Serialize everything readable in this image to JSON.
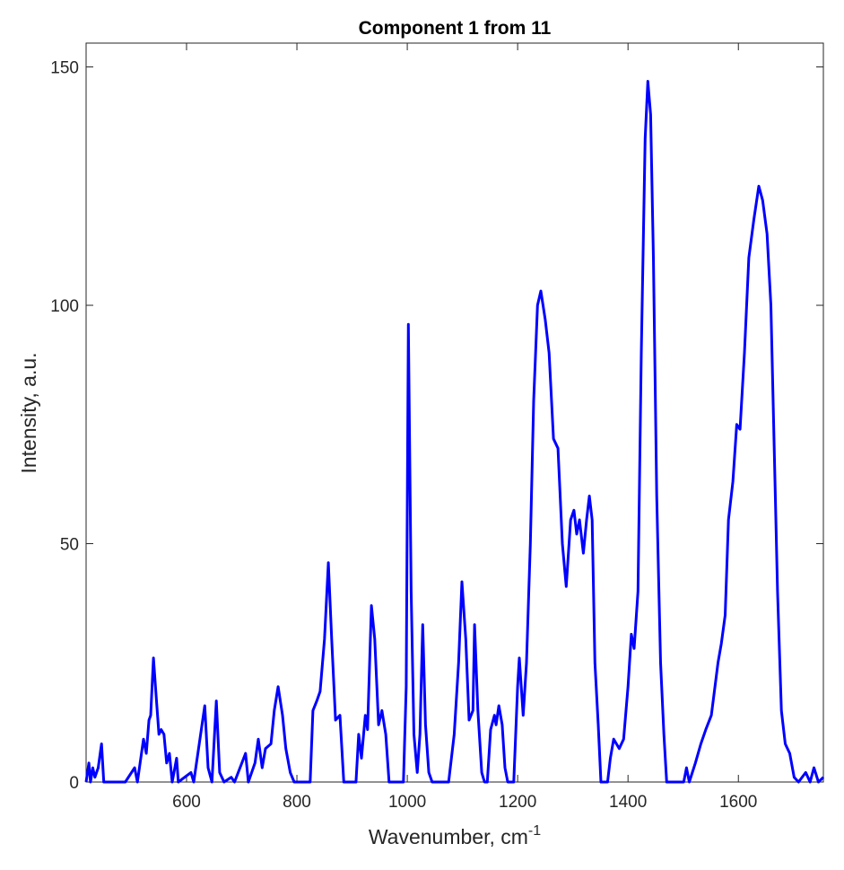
{
  "chart_data": {
    "type": "line",
    "title": "Component 1 from 11",
    "x_label": "Wavenumber, cm",
    "x_label_superscript": "-1",
    "y_label": "Intensity, a.u.",
    "xlim": [
      418,
      1754
    ],
    "ylim": [
      0,
      155
    ],
    "xticks": [
      600,
      800,
      1000,
      1200,
      1400,
      1600
    ],
    "yticks": [
      0,
      50,
      100,
      150
    ],
    "series": [
      {
        "color": "#0000ff",
        "x": [
          418,
          423,
          426,
          430,
          434,
          440,
          446,
          450,
          489,
          506,
          511,
          522,
          527,
          532,
          535,
          540,
          545,
          550,
          554,
          559,
          564,
          569,
          574,
          582,
          585,
          608,
          613,
          633,
          639,
          646,
          654,
          660,
          668,
          681,
          687,
          707,
          712,
          724,
          730,
          737,
          743,
          753,
          759,
          766,
          774,
          780,
          788,
          795,
          824,
          829,
          836,
          842,
          850,
          857,
          863,
          870,
          878,
          885,
          907,
          912,
          917,
          924,
          928,
          935,
          941,
          948,
          954,
          961,
          967,
          993,
          998,
          1002,
          1007,
          1012,
          1018,
          1023,
          1028,
          1033,
          1039,
          1045,
          1075,
          1085,
          1093,
          1099,
          1106,
          1112,
          1119,
          1122,
          1128,
          1135,
          1140,
          1145,
          1151,
          1158,
          1161,
          1166,
          1172,
          1177,
          1182,
          1193,
          1200,
          1203,
          1210,
          1216,
          1223,
          1229,
          1236,
          1242,
          1250,
          1257,
          1265,
          1273,
          1281,
          1288,
          1296,
          1302,
          1307,
          1312,
          1319,
          1325,
          1330,
          1335,
          1340,
          1346,
          1351,
          1363,
          1368,
          1374,
          1384,
          1392,
          1400,
          1406,
          1411,
          1418,
          1424,
          1431,
          1436,
          1441,
          1446,
          1452,
          1459,
          1465,
          1470,
          1501,
          1506,
          1511,
          1522,
          1532,
          1541,
          1551,
          1563,
          1569,
          1576,
          1582,
          1590,
          1597,
          1603,
          1611,
          1619,
          1628,
          1637,
          1644,
          1652,
          1659,
          1665,
          1671,
          1678,
          1685,
          1693,
          1701,
          1709,
          1722,
          1730,
          1737,
          1745,
          1754
        ],
        "values": [
          0,
          4,
          0,
          3,
          1,
          3,
          8,
          0,
          0,
          3,
          0,
          9,
          6,
          13,
          14,
          26,
          18,
          10,
          11,
          10,
          4,
          6,
          0,
          5,
          0,
          2,
          0,
          16,
          3,
          0,
          17,
          2,
          0,
          1,
          0,
          6,
          0,
          4,
          9,
          3,
          7,
          8,
          15,
          20,
          14,
          7,
          2,
          0,
          0,
          15,
          17,
          19,
          30,
          46,
          30,
          13,
          14,
          0,
          0,
          10,
          5,
          14,
          11,
          37,
          30,
          12,
          15,
          10,
          0,
          0,
          20,
          96,
          40,
          10,
          2,
          10,
          33,
          12,
          2,
          0,
          0,
          10,
          25,
          42,
          30,
          13,
          15,
          33,
          15,
          2,
          0,
          0,
          11,
          14,
          12,
          16,
          12,
          3,
          0,
          0,
          20,
          26,
          14,
          25,
          50,
          80,
          100,
          103,
          97,
          90,
          72,
          70,
          50,
          41,
          55,
          57,
          52,
          55,
          48,
          55,
          60,
          55,
          25,
          12,
          0,
          0,
          5,
          9,
          7,
          9,
          20,
          31,
          28,
          40,
          90,
          135,
          147,
          140,
          110,
          60,
          25,
          10,
          0,
          0,
          3,
          0,
          4,
          8,
          11,
          14,
          25,
          29,
          35,
          55,
          63,
          75,
          74,
          90,
          110,
          118,
          125,
          122,
          115,
          100,
          70,
          40,
          15,
          8,
          6,
          1,
          0,
          2,
          0,
          3,
          0,
          1
        ]
      }
    ]
  }
}
